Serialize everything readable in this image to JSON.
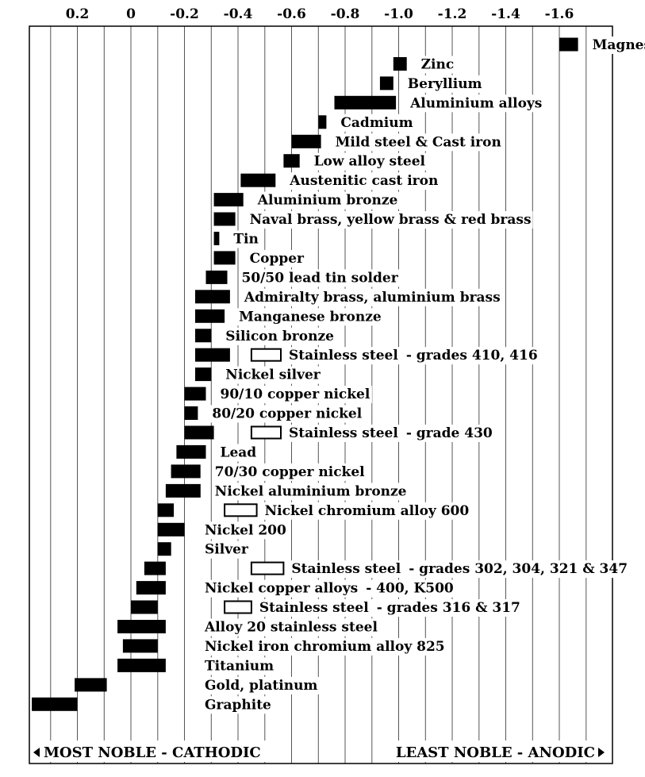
{
  "chart_data": {
    "type": "range-bar",
    "xlim": [
      0.35,
      -1.7
    ],
    "x_axis_inverted": true,
    "x_ticks": [
      {
        "value": 0.2,
        "label": "0.2"
      },
      {
        "value": 0,
        "label": "0"
      },
      {
        "value": -0.2,
        "label": "-0.2"
      },
      {
        "value": -0.4,
        "label": "-0.4"
      },
      {
        "value": -0.6,
        "label": "-0.6"
      },
      {
        "value": -0.8,
        "label": "-0.8"
      },
      {
        "value": -1.0,
        "label": "-1.0"
      },
      {
        "value": -1.2,
        "label": "-1.2"
      },
      {
        "value": -1.4,
        "label": "-1.4"
      },
      {
        "value": -1.6,
        "label": "-1.6"
      }
    ],
    "grid": true,
    "extra_gridlines": [
      0.3,
      0.1,
      -0.1,
      -0.3,
      -0.5,
      -0.7,
      -0.9,
      -1.1,
      -1.3,
      -1.5,
      -1.7
    ],
    "colors": {
      "active": "#000000",
      "passive_fill": "#ffffff",
      "passive_stroke": "#000000",
      "grid": "#555555"
    },
    "legend": {
      "active": "solid bar",
      "passive": "open bar"
    },
    "metals": [
      {
        "name": "Magnesium",
        "range": [
          -1.6,
          -1.67
        ]
      },
      {
        "name": "Zinc",
        "range": [
          -0.98,
          -1.03
        ]
      },
      {
        "name": "Beryllium",
        "range": [
          -0.93,
          -0.98
        ]
      },
      {
        "name": "Aluminium alloys",
        "range": [
          -0.76,
          -0.99
        ]
      },
      {
        "name": "Cadmium",
        "range": [
          -0.7,
          -0.73
        ]
      },
      {
        "name": "Mild steel & Cast iron",
        "range": [
          -0.6,
          -0.71
        ]
      },
      {
        "name": "Low alloy steel",
        "range": [
          -0.57,
          -0.63
        ]
      },
      {
        "name": "Austenitic cast iron",
        "range": [
          -0.41,
          -0.54
        ]
      },
      {
        "name": "Aluminium bronze",
        "range": [
          -0.31,
          -0.42
        ]
      },
      {
        "name": "Naval brass, yellow brass & red brass",
        "range": [
          -0.31,
          -0.39
        ]
      },
      {
        "name": "Tin",
        "range": [
          -0.31,
          -0.33
        ]
      },
      {
        "name": "Copper",
        "range": [
          -0.31,
          -0.39
        ]
      },
      {
        "name": "50/50 lead tin solder",
        "range": [
          -0.28,
          -0.36
        ]
      },
      {
        "name": "Admiralty brass, aluminium brass",
        "range": [
          -0.24,
          -0.37
        ]
      },
      {
        "name": "Manganese bronze",
        "range": [
          -0.24,
          -0.35
        ]
      },
      {
        "name": "Silicon bronze",
        "range": [
          -0.24,
          -0.3
        ]
      },
      {
        "name": "Stainless steel",
        "suffix": "- grades 410, 416",
        "range": [
          -0.24,
          -0.37
        ],
        "passive_range": [
          -0.45,
          -0.56
        ]
      },
      {
        "name": "Nickel silver",
        "range": [
          -0.24,
          -0.3
        ]
      },
      {
        "name": "90/10 copper nickel",
        "range": [
          -0.2,
          -0.28
        ]
      },
      {
        "name": "80/20 copper nickel",
        "range": [
          -0.2,
          -0.25
        ]
      },
      {
        "name": "Stainless steel",
        "suffix": "- grade 430",
        "range": [
          -0.2,
          -0.31
        ],
        "passive_range": [
          -0.45,
          -0.56
        ]
      },
      {
        "name": "Lead",
        "range": [
          -0.17,
          -0.28
        ]
      },
      {
        "name": "70/30 copper nickel",
        "range": [
          -0.15,
          -0.26
        ]
      },
      {
        "name": "Nickel aluminium bronze",
        "range": [
          -0.13,
          -0.26
        ]
      },
      {
        "name": "Nickel chromium alloy 600",
        "range": [
          -0.1,
          -0.16
        ],
        "passive_range": [
          -0.35,
          -0.47
        ]
      },
      {
        "name": "Nickel 200",
        "range": [
          -0.1,
          -0.2
        ]
      },
      {
        "name": "Silver",
        "range": [
          -0.1,
          -0.15
        ]
      },
      {
        "name": "Stainless steel",
        "suffix": "- grades 302, 304, 321 & 347",
        "range": [
          -0.05,
          -0.13
        ],
        "passive_range": [
          -0.45,
          -0.57
        ]
      },
      {
        "name": "Nickel copper alloys",
        "suffix": "- 400, K500",
        "range": [
          -0.02,
          -0.13
        ]
      },
      {
        "name": "Stainless steel",
        "suffix": "- grades 316 & 317",
        "range": [
          0.0,
          -0.1
        ],
        "passive_range": [
          -0.35,
          -0.45
        ]
      },
      {
        "name": "Alloy 20 stainless steel",
        "range": [
          0.05,
          -0.13
        ]
      },
      {
        "name": "Nickel iron chromium alloy 825",
        "range": [
          0.03,
          -0.1
        ]
      },
      {
        "name": "Titanium",
        "range": [
          0.05,
          -0.13
        ]
      },
      {
        "name": "Gold, platinum",
        "range": [
          0.21,
          0.09
        ]
      },
      {
        "name": "Graphite",
        "range": [
          0.37,
          0.2
        ]
      }
    ],
    "footer": {
      "left": "MOST NOBLE - CATHODIC",
      "right": "LEAST NOBLE - ANODIC"
    }
  }
}
